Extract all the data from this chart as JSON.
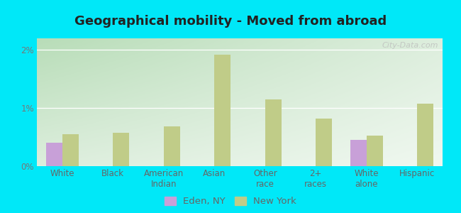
{
  "title": "Geographical mobility - Moved from abroad",
  "categories": [
    "White",
    "Black",
    "American\nIndian",
    "Asian",
    "Other\nrace",
    "2+\nraces",
    "White\nalone",
    "Hispanic"
  ],
  "eden_ny": [
    0.4,
    0.0,
    0.0,
    0.0,
    0.0,
    0.0,
    0.45,
    0.0
  ],
  "new_york": [
    0.55,
    0.58,
    0.68,
    1.92,
    1.15,
    0.82,
    0.53,
    1.08
  ],
  "eden_color": "#c8a0d8",
  "new_york_color": "#c0cc88",
  "bg_topleft": "#b8ddb8",
  "bg_topright": "#ddeedd",
  "bg_bottom": "#ddeedd",
  "outer_bg": "#00e8f8",
  "ylim": [
    0,
    2.2
  ],
  "yticks": [
    0,
    1,
    2
  ],
  "ytick_labels": [
    "0%",
    "1%",
    "2%"
  ],
  "bar_width": 0.32,
  "legend_eden": "Eden, NY",
  "legend_ny": "New York",
  "title_fontsize": 13,
  "tick_fontsize": 8.5,
  "legend_fontsize": 9.5,
  "watermark": "City-Data.com"
}
